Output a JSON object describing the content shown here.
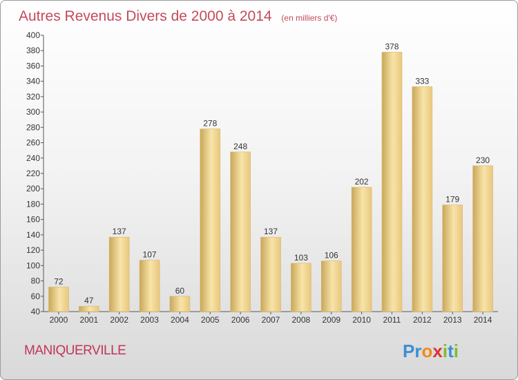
{
  "chart_data": {
    "type": "bar",
    "title": "Autres Revenus Divers de 2000 à 2014",
    "subtitle": "(en milliers d'€)",
    "categories": [
      "2000",
      "2001",
      "2002",
      "2003",
      "2004",
      "2005",
      "2006",
      "2007",
      "2008",
      "2009",
      "2010",
      "2011",
      "2012",
      "2013",
      "2014"
    ],
    "values": [
      72,
      47,
      137,
      107,
      60,
      278,
      248,
      137,
      103,
      106,
      202,
      378,
      333,
      179,
      230
    ],
    "ylim": [
      40,
      400
    ],
    "ytick_step": 20,
    "grid": false,
    "legend": "none",
    "bar_color": "#e8c77e",
    "bar_highlight": "#f8e4a8",
    "bar_shadow": "#c9a75a"
  },
  "footer": {
    "town": "MANIQUERVILLE",
    "brand_letters": [
      "P",
      "r",
      "o",
      "x",
      "i",
      "t",
      "i"
    ],
    "brand_colors": [
      "#3a8fd4",
      "#3a8fd4",
      "#f08a1c",
      "#e0312e",
      "#7cbd2a",
      "#3a8fd4",
      "#7cbd2a"
    ]
  }
}
